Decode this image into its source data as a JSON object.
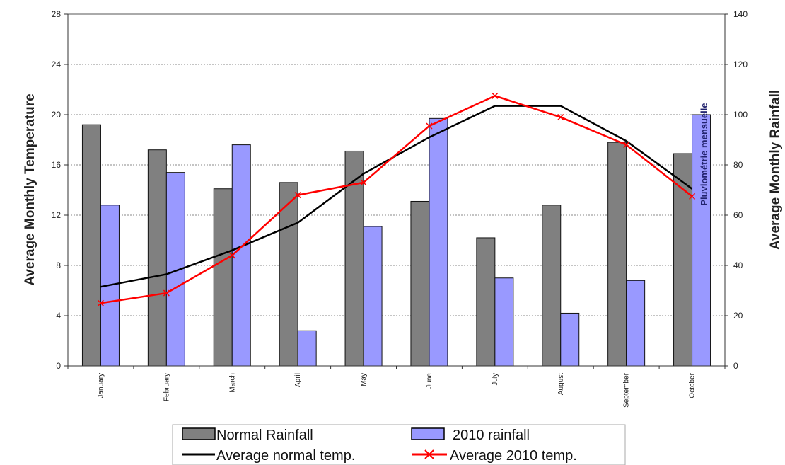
{
  "chart_data": {
    "type": "bar",
    "title": "",
    "categories": [
      "January",
      "February",
      "March",
      "April",
      "May",
      "June",
      "July",
      "August",
      "September",
      "October"
    ],
    "y_left": {
      "label": "Average Monthly Temperature",
      "range": [
        0,
        28
      ],
      "ticks": [
        "0",
        "4",
        "8",
        "12",
        "16",
        "20",
        "24",
        "28"
      ]
    },
    "y_right": {
      "label": "Average Monthly Rainfall",
      "range": [
        0,
        140
      ],
      "ticks": [
        "0",
        "20",
        "40",
        "60",
        "80",
        "100",
        "120",
        "140"
      ]
    },
    "grid": true,
    "legend_position": "bottom",
    "annotation": "Pluviométrie mensuelle",
    "series": [
      {
        "name": "Normal Rainfall",
        "kind": "bar",
        "axis": "right",
        "color": "#808080",
        "values": [
          96,
          86,
          70.5,
          73,
          85.5,
          65.5,
          51,
          64,
          89,
          84.5
        ]
      },
      {
        "name": "2010 rainfall",
        "kind": "bar",
        "axis": "right",
        "color": "#9999ff",
        "values": [
          64,
          77,
          88,
          14,
          55.5,
          98.5,
          35,
          21,
          34,
          100
        ]
      },
      {
        "name": "Average normal temp.",
        "kind": "line",
        "axis": "left",
        "color": "#000000",
        "values": [
          6.3,
          7.3,
          9.2,
          11.4,
          15.3,
          18.2,
          20.7,
          20.7,
          17.9,
          14.1
        ]
      },
      {
        "name": "Average 2010 temp.",
        "kind": "line",
        "axis": "left",
        "color": "#ff0000",
        "marker": "x",
        "values": [
          5.0,
          5.8,
          8.8,
          13.6,
          14.6,
          19.1,
          21.5,
          19.8,
          17.6,
          13.5
        ]
      }
    ]
  }
}
